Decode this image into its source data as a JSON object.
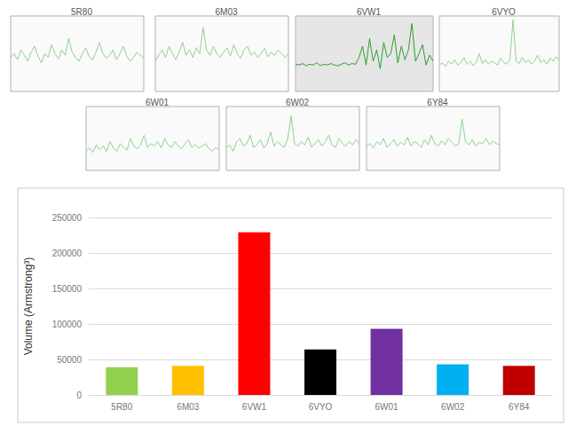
{
  "chart_data": [
    {
      "type": "line",
      "title": "5R80",
      "color": "#8fd18f",
      "ylim": [
        0,
        1
      ],
      "tick_labels": false,
      "grid": false,
      "values": [
        0.45,
        0.5,
        0.42,
        0.55,
        0.48,
        0.4,
        0.52,
        0.6,
        0.47,
        0.38,
        0.5,
        0.45,
        0.62,
        0.5,
        0.43,
        0.55,
        0.48,
        0.7,
        0.52,
        0.45,
        0.4,
        0.5,
        0.58,
        0.46,
        0.42,
        0.52,
        0.65,
        0.5,
        0.44,
        0.48,
        0.55,
        0.42,
        0.5,
        0.6,
        0.47,
        0.4,
        0.45,
        0.52,
        0.48,
        0.44
      ]
    },
    {
      "type": "line",
      "title": "6M03",
      "color": "#8fd18f",
      "ylim": [
        0,
        1
      ],
      "tick_labels": false,
      "grid": false,
      "values": [
        0.4,
        0.48,
        0.55,
        0.45,
        0.6,
        0.5,
        0.42,
        0.52,
        0.65,
        0.48,
        0.55,
        0.45,
        0.58,
        0.5,
        0.85,
        0.55,
        0.48,
        0.6,
        0.5,
        0.45,
        0.52,
        0.58,
        0.47,
        0.62,
        0.5,
        0.44,
        0.55,
        0.6,
        0.48,
        0.52,
        0.45,
        0.5,
        0.57,
        0.46,
        0.52,
        0.48,
        0.55,
        0.5,
        0.45,
        0.5
      ]
    },
    {
      "type": "line",
      "title": "6VW1",
      "color": "#2e9e2e",
      "ylim": [
        0,
        1
      ],
      "tick_labels": false,
      "grid": false,
      "values": [
        0.36,
        0.35,
        0.37,
        0.34,
        0.36,
        0.35,
        0.38,
        0.34,
        0.36,
        0.35,
        0.37,
        0.35,
        0.34,
        0.36,
        0.38,
        0.35,
        0.37,
        0.36,
        0.45,
        0.6,
        0.35,
        0.7,
        0.4,
        0.55,
        0.3,
        0.65,
        0.45,
        0.5,
        0.75,
        0.38,
        0.6,
        0.42,
        0.55,
        0.9,
        0.4,
        0.5,
        0.62,
        0.35,
        0.48,
        0.4
      ]
    },
    {
      "type": "line",
      "title": "6VYO",
      "color": "#8fd18f",
      "ylim": [
        0,
        1
      ],
      "tick_labels": false,
      "grid": false,
      "values": [
        0.35,
        0.38,
        0.33,
        0.4,
        0.36,
        0.42,
        0.35,
        0.38,
        0.45,
        0.36,
        0.4,
        0.34,
        0.38,
        0.5,
        0.37,
        0.42,
        0.36,
        0.4,
        0.38,
        0.35,
        0.44,
        0.38,
        0.36,
        0.42,
        0.95,
        0.4,
        0.37,
        0.45,
        0.38,
        0.42,
        0.36,
        0.4,
        0.48,
        0.38,
        0.42,
        0.36,
        0.44,
        0.4,
        0.46,
        0.42
      ]
    },
    {
      "type": "line",
      "title": "6W01",
      "color": "#8fd18f",
      "ylim": [
        0,
        1
      ],
      "tick_labels": false,
      "grid": false,
      "values": [
        0.3,
        0.35,
        0.28,
        0.4,
        0.32,
        0.38,
        0.3,
        0.45,
        0.35,
        0.3,
        0.42,
        0.36,
        0.32,
        0.5,
        0.38,
        0.34,
        0.4,
        0.55,
        0.36,
        0.42,
        0.38,
        0.45,
        0.35,
        0.5,
        0.4,
        0.36,
        0.45,
        0.38,
        0.34,
        0.42,
        0.48,
        0.36,
        0.4,
        0.35,
        0.38,
        0.42,
        0.34,
        0.3,
        0.36,
        0.32
      ]
    },
    {
      "type": "line",
      "title": "6W02",
      "color": "#8fd18f",
      "ylim": [
        0,
        1
      ],
      "tick_labels": false,
      "grid": false,
      "values": [
        0.35,
        0.4,
        0.3,
        0.45,
        0.5,
        0.38,
        0.42,
        0.55,
        0.36,
        0.4,
        0.48,
        0.35,
        0.42,
        0.6,
        0.38,
        0.45,
        0.4,
        0.36,
        0.5,
        0.85,
        0.42,
        0.38,
        0.45,
        0.4,
        0.52,
        0.36,
        0.42,
        0.48,
        0.38,
        0.45,
        0.55,
        0.4,
        0.36,
        0.5,
        0.42,
        0.38,
        0.45,
        0.4,
        0.48,
        0.42
      ]
    },
    {
      "type": "line",
      "title": "6Y84",
      "color": "#8fd18f",
      "ylim": [
        0,
        1
      ],
      "tick_labels": false,
      "grid": false,
      "values": [
        0.38,
        0.42,
        0.35,
        0.45,
        0.4,
        0.5,
        0.36,
        0.42,
        0.48,
        0.38,
        0.44,
        0.4,
        0.52,
        0.38,
        0.45,
        0.42,
        0.36,
        0.48,
        0.4,
        0.55,
        0.42,
        0.38,
        0.46,
        0.4,
        0.5,
        0.44,
        0.38,
        0.42,
        0.8,
        0.45,
        0.4,
        0.48,
        0.38,
        0.44,
        0.42,
        0.5,
        0.4,
        0.46,
        0.42,
        0.4
      ]
    },
    {
      "type": "bar",
      "ylabel": "Volume (Armstrong³)",
      "categories": [
        "5R80",
        "6M03",
        "6VW1",
        "6VYO",
        "6W01",
        "6W02",
        "6Y84"
      ],
      "values": [
        39000,
        41000,
        229000,
        64000,
        93000,
        43000,
        41000
      ],
      "colors": [
        "#92d050",
        "#ffc000",
        "#ff0000",
        "#000000",
        "#7030a0",
        "#00b0f0",
        "#c00000"
      ],
      "ylim": [
        0,
        250000
      ],
      "yticks": [
        0,
        50000,
        100000,
        150000,
        200000,
        250000
      ],
      "grid": true
    }
  ]
}
